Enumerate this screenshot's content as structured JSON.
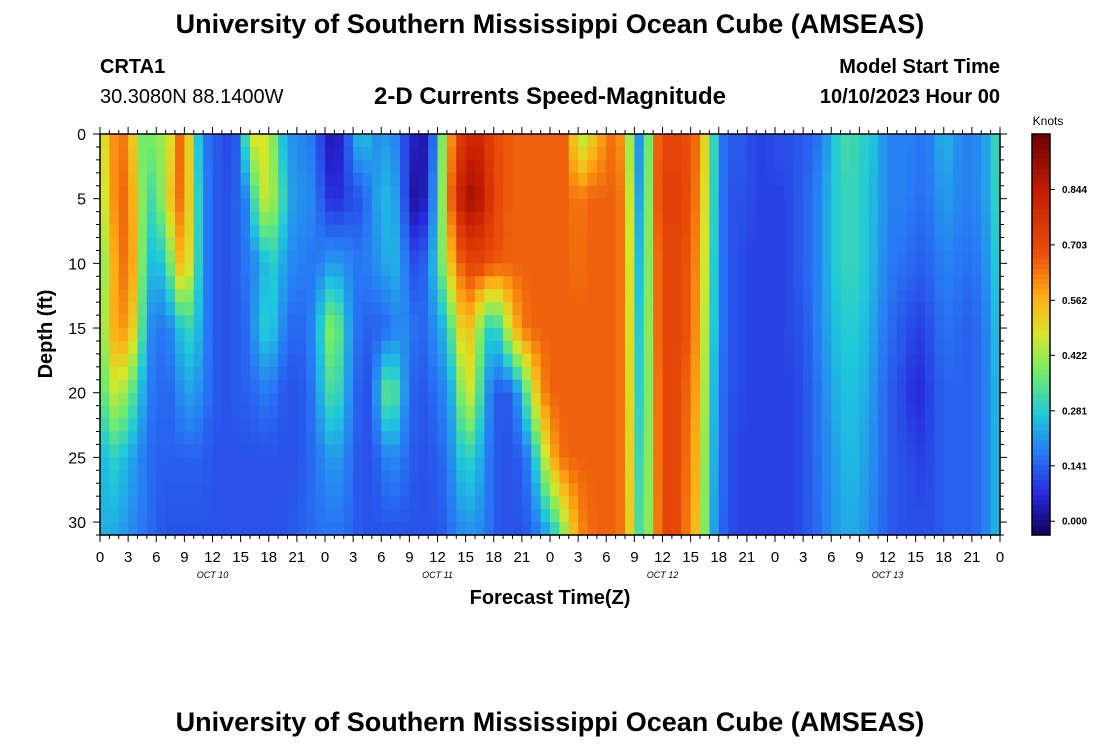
{
  "header": {
    "title": "University of Southern Mississippi Ocean Cube (AMSEAS)",
    "station": "CRTA1",
    "coords": "30.3080N  88.1400W",
    "chart_title": "2-D Currents Speed-Magnitude",
    "start_label": "Model Start Time",
    "start_value": "10/10/2023 Hour 00"
  },
  "footer": {
    "title": "University of Southern Mississippi Ocean Cube (AMSEAS)"
  },
  "chart_data": {
    "type": "heatmap",
    "title": "2-D Currents Speed-Magnitude",
    "xlabel": "Forecast Time(Z)",
    "ylabel": "Depth (ft)",
    "x_range_hours": [
      0,
      96
    ],
    "x_tick_labels": [
      "0",
      "3",
      "6",
      "9",
      "12",
      "15",
      "18",
      "21",
      "0",
      "3",
      "6",
      "9",
      "12",
      "15",
      "18",
      "21",
      "0",
      "3",
      "6",
      "9",
      "12",
      "15",
      "18",
      "21",
      "0",
      "3",
      "6",
      "9",
      "12",
      "15",
      "18",
      "21",
      "0"
    ],
    "day_labels": [
      "OCT 10",
      "OCT 11",
      "OCT 12",
      "OCT 13"
    ],
    "ylim": [
      0,
      31
    ],
    "y_ticks": [
      0,
      5,
      10,
      15,
      20,
      25,
      30
    ],
    "y_tick_labels": [
      "0",
      "5",
      "10",
      "15",
      "20",
      "25",
      "30"
    ],
    "colorbar": {
      "unit": "Knots",
      "ticks": [
        0.0,
        0.141,
        0.281,
        0.422,
        0.562,
        0.703,
        0.844
      ],
      "tick_labels": [
        "0.000",
        "0.141",
        "0.281",
        "0.422",
        "0.562",
        "0.703",
        "0.844"
      ],
      "range": [
        -0.035,
        0.985
      ]
    },
    "speed_grid": {
      "depths": [
        0,
        5,
        10,
        15,
        20,
        25,
        31
      ],
      "hours": [
        0,
        1,
        2,
        3,
        4,
        5,
        6,
        7,
        8,
        9,
        10,
        11,
        12,
        13,
        14,
        15,
        16,
        17,
        18,
        19,
        20,
        21,
        22,
        23,
        24,
        25,
        26,
        27,
        28,
        29,
        30,
        31,
        32,
        33,
        34,
        35,
        36,
        37,
        38,
        39,
        40,
        41,
        42,
        43,
        44,
        45,
        46,
        47,
        48,
        49,
        50,
        51,
        52,
        53,
        54,
        55,
        56,
        57,
        58,
        59,
        60,
        61,
        62,
        63,
        64,
        65,
        66,
        67,
        68,
        69,
        70,
        71,
        72,
        73,
        74,
        75,
        76,
        77,
        78,
        79,
        80,
        81,
        82,
        83,
        84,
        85,
        86,
        87,
        88,
        89,
        90,
        91,
        92,
        93,
        94,
        95,
        96
      ],
      "values": [
        [
          0.45,
          0.55,
          0.66,
          0.6,
          0.45,
          0.3,
          0.48,
          0.35,
          0.62,
          0.68,
          0.35,
          0.18,
          0.14,
          0.12,
          0.1,
          0.16,
          0.48,
          0.5,
          0.46,
          0.32,
          0.2,
          0.2,
          0.18,
          0.16,
          0.05,
          0.02,
          0.08,
          0.2,
          0.3,
          0.2,
          0.2,
          0.22,
          0.14,
          0.08,
          0.02,
          0.04,
          0.26,
          0.52,
          0.7,
          0.78,
          0.82,
          0.78,
          0.7,
          0.68,
          0.66,
          0.66,
          0.66,
          0.66,
          0.66,
          0.66,
          0.66,
          0.4,
          0.48,
          0.55,
          0.62,
          0.66,
          0.55,
          0.28,
          0.12,
          0.62,
          0.7,
          0.72,
          0.7,
          0.68,
          0.62,
          0.4,
          0.2,
          0.12,
          0.14,
          0.12,
          0.1,
          0.1,
          0.12,
          0.12,
          0.12,
          0.14,
          0.14,
          0.18,
          0.24,
          0.32,
          0.32,
          0.3,
          0.28,
          0.24,
          0.18,
          0.18,
          0.18,
          0.18,
          0.16,
          0.2,
          0.26,
          0.22,
          0.18,
          0.18,
          0.2,
          0.25,
          0.35
        ],
        [
          0.4,
          0.55,
          0.66,
          0.64,
          0.5,
          0.3,
          0.34,
          0.45,
          0.62,
          0.66,
          0.38,
          0.2,
          0.14,
          0.12,
          0.12,
          0.16,
          0.2,
          0.46,
          0.45,
          0.38,
          0.24,
          0.2,
          0.2,
          0.18,
          0.1,
          0.06,
          0.09,
          0.12,
          0.12,
          0.2,
          0.24,
          0.26,
          0.18,
          0.06,
          -0.02,
          0.1,
          0.26,
          0.55,
          0.78,
          0.88,
          0.9,
          0.82,
          0.72,
          0.68,
          0.66,
          0.66,
          0.66,
          0.66,
          0.66,
          0.66,
          0.66,
          0.62,
          0.66,
          0.66,
          0.66,
          0.66,
          0.62,
          0.3,
          0.16,
          0.62,
          0.72,
          0.74,
          0.72,
          0.68,
          0.6,
          0.38,
          0.2,
          0.12,
          0.12,
          0.12,
          0.1,
          0.1,
          0.1,
          0.1,
          0.12,
          0.14,
          0.16,
          0.2,
          0.26,
          0.3,
          0.3,
          0.3,
          0.26,
          0.24,
          0.18,
          0.18,
          0.18,
          0.16,
          0.16,
          0.18,
          0.22,
          0.2,
          0.18,
          0.18,
          0.2,
          0.24,
          0.34
        ],
        [
          0.35,
          0.5,
          0.64,
          0.64,
          0.52,
          0.24,
          0.28,
          0.26,
          0.5,
          0.6,
          0.38,
          0.2,
          0.14,
          0.12,
          0.12,
          0.15,
          0.18,
          0.2,
          0.3,
          0.26,
          0.2,
          0.18,
          0.18,
          0.16,
          0.2,
          0.22,
          0.2,
          0.18,
          0.16,
          0.2,
          0.2,
          0.26,
          0.22,
          0.14,
          0.1,
          0.18,
          0.3,
          0.48,
          0.62,
          0.7,
          0.72,
          0.7,
          0.68,
          0.66,
          0.66,
          0.66,
          0.66,
          0.66,
          0.66,
          0.66,
          0.66,
          0.64,
          0.66,
          0.66,
          0.66,
          0.66,
          0.62,
          0.34,
          0.18,
          0.6,
          0.7,
          0.72,
          0.7,
          0.66,
          0.58,
          0.36,
          0.2,
          0.12,
          0.12,
          0.1,
          0.1,
          0.1,
          0.1,
          0.1,
          0.12,
          0.14,
          0.16,
          0.2,
          0.26,
          0.3,
          0.3,
          0.3,
          0.26,
          0.22,
          0.18,
          0.16,
          0.16,
          0.14,
          0.14,
          0.16,
          0.18,
          0.18,
          0.16,
          0.16,
          0.18,
          0.22,
          0.32
        ],
        [
          0.35,
          0.52,
          0.62,
          0.58,
          0.46,
          0.2,
          0.18,
          0.16,
          0.22,
          0.3,
          0.3,
          0.2,
          0.14,
          0.12,
          0.12,
          0.14,
          0.16,
          0.26,
          0.3,
          0.22,
          0.16,
          0.14,
          0.16,
          0.2,
          0.36,
          0.42,
          0.28,
          0.18,
          0.14,
          0.14,
          0.14,
          0.16,
          0.2,
          0.18,
          0.14,
          0.16,
          0.22,
          0.26,
          0.44,
          0.58,
          0.48,
          0.32,
          0.26,
          0.36,
          0.54,
          0.62,
          0.66,
          0.66,
          0.66,
          0.66,
          0.66,
          0.66,
          0.66,
          0.66,
          0.66,
          0.66,
          0.62,
          0.36,
          0.2,
          0.6,
          0.7,
          0.72,
          0.7,
          0.66,
          0.56,
          0.34,
          0.2,
          0.12,
          0.12,
          0.1,
          0.1,
          0.1,
          0.1,
          0.1,
          0.12,
          0.12,
          0.16,
          0.2,
          0.24,
          0.28,
          0.28,
          0.28,
          0.24,
          0.2,
          0.16,
          0.14,
          0.12,
          0.1,
          0.1,
          0.14,
          0.16,
          0.16,
          0.14,
          0.14,
          0.16,
          0.2,
          0.3
        ],
        [
          0.3,
          0.44,
          0.46,
          0.38,
          0.3,
          0.18,
          0.16,
          0.14,
          0.16,
          0.22,
          0.22,
          0.18,
          0.14,
          0.12,
          0.12,
          0.14,
          0.14,
          0.16,
          0.18,
          0.14,
          0.12,
          0.12,
          0.14,
          0.18,
          0.3,
          0.34,
          0.26,
          0.16,
          0.12,
          0.12,
          0.3,
          0.4,
          0.26,
          0.16,
          0.12,
          0.14,
          0.16,
          0.2,
          0.28,
          0.5,
          0.42,
          0.24,
          0.14,
          0.12,
          0.14,
          0.26,
          0.44,
          0.6,
          0.66,
          0.66,
          0.66,
          0.66,
          0.66,
          0.66,
          0.66,
          0.66,
          0.62,
          0.38,
          0.2,
          0.58,
          0.7,
          0.72,
          0.68,
          0.64,
          0.54,
          0.32,
          0.18,
          0.12,
          0.12,
          0.1,
          0.1,
          0.1,
          0.1,
          0.1,
          0.1,
          0.12,
          0.14,
          0.18,
          0.22,
          0.26,
          0.26,
          0.26,
          0.22,
          0.18,
          0.14,
          0.12,
          0.1,
          0.06,
          0.08,
          0.12,
          0.14,
          0.14,
          0.14,
          0.14,
          0.16,
          0.2,
          0.28
        ],
        [
          0.22,
          0.3,
          0.28,
          0.24,
          0.2,
          0.16,
          0.14,
          0.14,
          0.14,
          0.14,
          0.14,
          0.14,
          0.12,
          0.12,
          0.12,
          0.12,
          0.12,
          0.12,
          0.12,
          0.12,
          0.12,
          0.12,
          0.14,
          0.16,
          0.2,
          0.22,
          0.2,
          0.14,
          0.12,
          0.12,
          0.16,
          0.2,
          0.18,
          0.14,
          0.12,
          0.12,
          0.14,
          0.16,
          0.24,
          0.3,
          0.28,
          0.2,
          0.14,
          0.12,
          0.12,
          0.14,
          0.2,
          0.38,
          0.54,
          0.64,
          0.66,
          0.66,
          0.66,
          0.66,
          0.66,
          0.66,
          0.62,
          0.4,
          0.22,
          0.58,
          0.7,
          0.72,
          0.68,
          0.62,
          0.52,
          0.3,
          0.18,
          0.12,
          0.1,
          0.1,
          0.1,
          0.1,
          0.1,
          0.1,
          0.1,
          0.12,
          0.14,
          0.18,
          0.2,
          0.24,
          0.26,
          0.24,
          0.2,
          0.18,
          0.14,
          0.12,
          0.12,
          0.1,
          0.1,
          0.12,
          0.14,
          0.14,
          0.14,
          0.14,
          0.16,
          0.2,
          0.28
        ],
        [
          0.24,
          0.24,
          0.22,
          0.2,
          0.18,
          0.16,
          0.14,
          0.12,
          0.12,
          0.12,
          0.12,
          0.12,
          0.12,
          0.12,
          0.12,
          0.12,
          0.12,
          0.12,
          0.12,
          0.12,
          0.12,
          0.14,
          0.14,
          0.16,
          0.16,
          0.16,
          0.16,
          0.14,
          0.12,
          0.12,
          0.12,
          0.12,
          0.12,
          0.12,
          0.12,
          0.12,
          0.12,
          0.14,
          0.18,
          0.2,
          0.2,
          0.18,
          0.14,
          0.12,
          0.12,
          0.12,
          0.14,
          0.18,
          0.24,
          0.32,
          0.48,
          0.6,
          0.64,
          0.66,
          0.66,
          0.66,
          0.62,
          0.42,
          0.24,
          0.56,
          0.7,
          0.72,
          0.68,
          0.6,
          0.5,
          0.28,
          0.16,
          0.12,
          0.1,
          0.1,
          0.1,
          0.1,
          0.1,
          0.1,
          0.1,
          0.12,
          0.14,
          0.16,
          0.2,
          0.22,
          0.24,
          0.22,
          0.2,
          0.16,
          0.14,
          0.12,
          0.12,
          0.12,
          0.12,
          0.12,
          0.14,
          0.14,
          0.14,
          0.14,
          0.16,
          0.2,
          0.28
        ]
      ]
    }
  }
}
